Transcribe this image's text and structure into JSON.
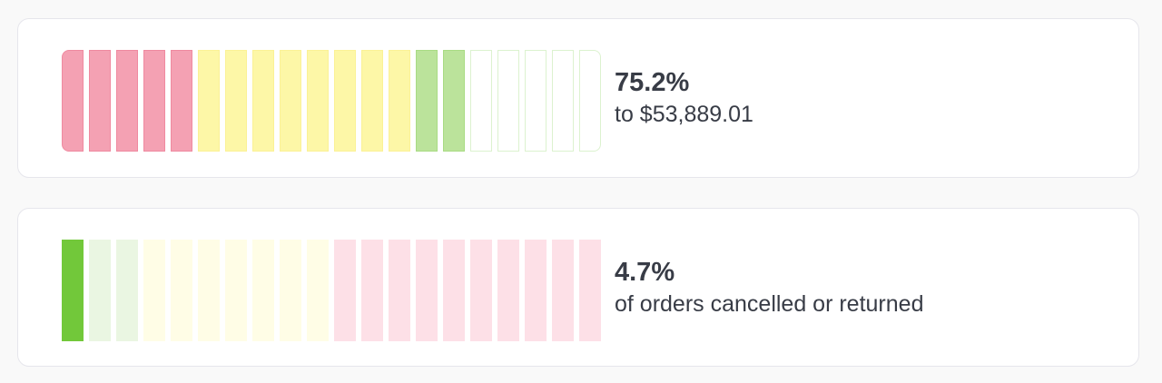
{
  "cards": [
    {
      "value": "75.2%",
      "label": "to $53,889.01",
      "segments": [
        {
          "fill": "#f4a1b3",
          "border": "#ef8aa0"
        },
        {
          "fill": "#f4a1b3",
          "border": "#ef8aa0"
        },
        {
          "fill": "#f4a1b3",
          "border": "#ef8aa0"
        },
        {
          "fill": "#f4a1b3",
          "border": "#ef8aa0"
        },
        {
          "fill": "#f4a1b3",
          "border": "#ef8aa0"
        },
        {
          "fill": "#fdf7a7",
          "border": "#fbf196"
        },
        {
          "fill": "#fdf7a7",
          "border": "#fbf196"
        },
        {
          "fill": "#fdf7a7",
          "border": "#fbf196"
        },
        {
          "fill": "#fdf7a7",
          "border": "#fbf196"
        },
        {
          "fill": "#fdf7a7",
          "border": "#fbf196"
        },
        {
          "fill": "#fdf7a7",
          "border": "#fbf196"
        },
        {
          "fill": "#fdf7a7",
          "border": "#fbf196"
        },
        {
          "fill": "#fdf7a7",
          "border": "#fbf196"
        },
        {
          "fill": "#bbe39b",
          "border": "#a9db84"
        },
        {
          "fill": "#bbe39b",
          "border": "#a9db84"
        },
        {
          "fill": "#ffffff",
          "border": "#dcf2cf"
        },
        {
          "fill": "#ffffff",
          "border": "#dcf2cf"
        },
        {
          "fill": "#ffffff",
          "border": "#dcf2cf"
        },
        {
          "fill": "#ffffff",
          "border": "#dcf2cf"
        },
        {
          "fill": "#ffffff",
          "border": "#dcf2cf"
        }
      ]
    },
    {
      "value": "4.7%",
      "label": "of orders cancelled or returned",
      "segments": [
        {
          "fill": "#72c83a",
          "border": "#72c83a"
        },
        {
          "fill": "#eaf6e2",
          "border": "#eaf6e2"
        },
        {
          "fill": "#eaf6e2",
          "border": "#eaf6e2"
        },
        {
          "fill": "#fffde6",
          "border": "#fffde6"
        },
        {
          "fill": "#fffde6",
          "border": "#fffde6"
        },
        {
          "fill": "#fffde6",
          "border": "#fffde6"
        },
        {
          "fill": "#fffde6",
          "border": "#fffde6"
        },
        {
          "fill": "#fffde6",
          "border": "#fffde6"
        },
        {
          "fill": "#fffde6",
          "border": "#fffde6"
        },
        {
          "fill": "#fffde6",
          "border": "#fffde6"
        },
        {
          "fill": "#fde0e7",
          "border": "#fde0e7"
        },
        {
          "fill": "#fde0e7",
          "border": "#fde0e7"
        },
        {
          "fill": "#fde0e7",
          "border": "#fde0e7"
        },
        {
          "fill": "#fde0e7",
          "border": "#fde0e7"
        },
        {
          "fill": "#fde0e7",
          "border": "#fde0e7"
        },
        {
          "fill": "#fde0e7",
          "border": "#fde0e7"
        },
        {
          "fill": "#fde0e7",
          "border": "#fde0e7"
        },
        {
          "fill": "#fde0e7",
          "border": "#fde0e7"
        },
        {
          "fill": "#fde0e7",
          "border": "#fde0e7"
        },
        {
          "fill": "#fde0e7",
          "border": "#fde0e7"
        }
      ]
    }
  ]
}
